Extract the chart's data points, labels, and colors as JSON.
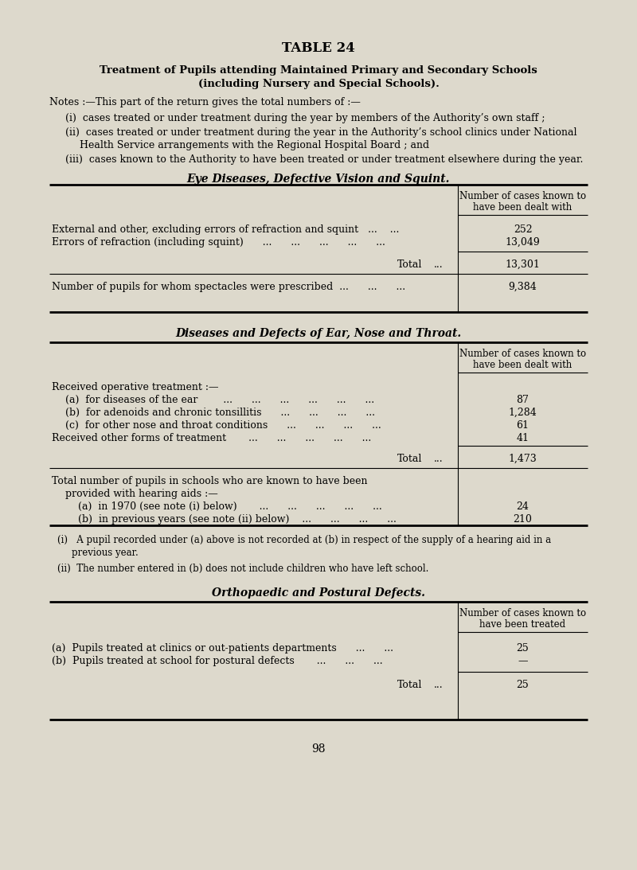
{
  "bg_color": "#ddd9cc",
  "title_table": "TABLE 24",
  "title_main_line1": "Treatment of Pupils attending Maintained Primary and Secondary Schools",
  "title_main_line2": "(including Nursery and Special Schools).",
  "notes_intro": "Notes :—This part of the return gives the total numbers of :—",
  "note1": "(i)  cases treated or under treatment during the year by members of the Authority’s own staff ;",
  "note2a": "(ii)  cases treated or under treatment during the year in the Authority’s school clinics under National",
  "note2b": "      Health Service arrangements with the Regional Hospital Board ; and",
  "note3": "(iii)  cases known to the Authority to have been treated or under treatment elsewhere during the year.",
  "section1_title": "Eye Diseases, Defective Vision and Squint.",
  "section1_col_header_1": "Number of cases known to",
  "section1_col_header_2": "have been dealt with",
  "s1r1_label": "External and other, excluding errors of refraction and squint   ...    ...",
  "s1r1_value": "252",
  "s1r2_label": "Errors of refraction (including squint)      ...      ...      ...      ...      ...",
  "s1r2_value": "13,049",
  "s1_total_value": "13,301",
  "s1_extra_label": "Number of pupils for whom spectacles were prescribed  ...      ...      ...",
  "s1_extra_value": "9,384",
  "section2_title": "Diseases and Defects of Ear, Nose and Throat.",
  "section2_col_header_1": "Number of cases known to",
  "section2_col_header_2": "have been dealt with",
  "s2_group": "Received operative treatment :—",
  "s2ra_label": "(a)  for diseases of the ear        ...      ...      ...      ...      ...      ...",
  "s2ra_value": "87",
  "s2rb_label": "(b)  for adenoids and chronic tonsillitis      ...      ...      ...      ...",
  "s2rb_value": "1,284",
  "s2rc_label": "(c)  for other nose and throat conditions      ...      ...      ...      ...",
  "s2rc_value": "61",
  "s2rd_label": "Received other forms of treatment       ...      ...      ...      ...      ...",
  "s2rd_value": "41",
  "s2_total_value": "1,473",
  "s2_hearing1": "Total number of pupils in schools who are known to have been",
  "s2_hearing2": "  provided with hearing aids :—",
  "s2ha_label": "    (a)  in 1970 (see note (i) below)       ...      ...      ...      ...      ...",
  "s2ha_value": "24",
  "s2hb_label": "    (b)  in previous years (see note (ii) below)    ...      ...      ...      ...",
  "s2hb_value": "210",
  "s2_note1a": "(i)   A pupil recorded under (a) above is not recorded at (b) in respect of the supply of a hearing aid in a",
  "s2_note1b": "      previous year.",
  "s2_note2": "(ii)  The number entered in (b) does not include children who have left school.",
  "section3_title": "Orthopaedic and Postural Defects.",
  "section3_col_header_1": "Number of cases known to",
  "section3_col_header_2": "have been treated",
  "s3ra_label": "(a)  Pupils treated at clinics or out-patients departments      ...      ...",
  "s3ra_value": "25",
  "s3rb_label": "(b)  Pupils treated at school for postural defects       ...      ...      ...",
  "s3rb_value": "—",
  "s3_total_value": "25",
  "page_number": "98"
}
